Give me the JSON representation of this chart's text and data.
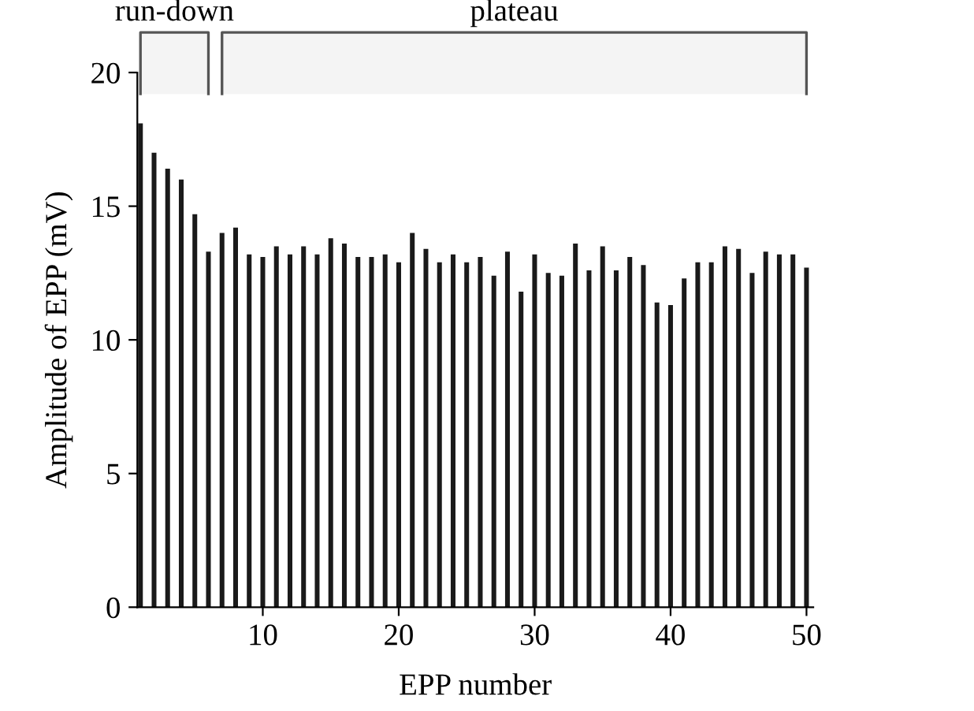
{
  "chart_data": {
    "type": "bar",
    "xlabel": "EPP number",
    "ylabel": "Amplitude of EPP (mV)",
    "x": [
      1,
      2,
      3,
      4,
      5,
      6,
      7,
      8,
      9,
      10,
      11,
      12,
      13,
      14,
      15,
      16,
      17,
      18,
      19,
      20,
      21,
      22,
      23,
      24,
      25,
      26,
      27,
      28,
      29,
      30,
      31,
      32,
      33,
      34,
      35,
      36,
      37,
      38,
      39,
      40,
      41,
      42,
      43,
      44,
      45,
      46,
      47,
      48,
      49,
      50
    ],
    "values": [
      18.1,
      17.0,
      16.4,
      16.0,
      14.7,
      13.3,
      14.0,
      14.2,
      13.2,
      13.1,
      13.5,
      13.2,
      13.5,
      13.2,
      13.8,
      13.6,
      13.1,
      13.1,
      13.2,
      12.9,
      14.0,
      13.4,
      12.9,
      13.2,
      12.9,
      13.1,
      12.4,
      13.3,
      11.8,
      13.2,
      12.5,
      12.4,
      13.6,
      12.6,
      13.5,
      12.6,
      13.1,
      12.8,
      11.4,
      11.3,
      12.3,
      12.9,
      12.9,
      13.5,
      13.4,
      12.5,
      13.3,
      13.2,
      13.2,
      12.7
    ],
    "color": "#1a1a1a",
    "xlim": [
      0.77,
      50.5
    ],
    "xticks": [
      10,
      20,
      30,
      40,
      50
    ],
    "ylim": [
      0,
      20
    ],
    "yticks": [
      0,
      5,
      10,
      15,
      20
    ],
    "grid": false,
    "bands": [
      {
        "axis": "x",
        "from": 1,
        "to": 6,
        "label": "run-down"
      },
      {
        "axis": "x",
        "from": 7,
        "to": 50,
        "label": "plateau"
      }
    ]
  }
}
